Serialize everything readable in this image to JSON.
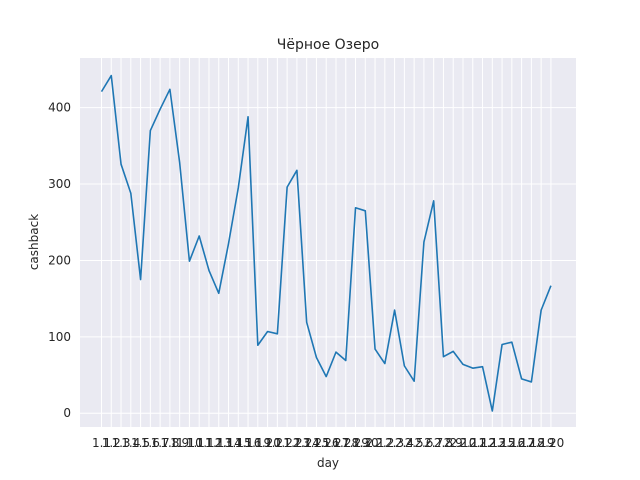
{
  "chart_data": {
    "type": "line",
    "title": "Чёрное Озеро",
    "xlabel": "day",
    "ylabel": "cashback",
    "ylim": [
      -18,
      465
    ],
    "yticks": [
      0,
      100,
      200,
      300,
      400
    ],
    "grid": true,
    "colors": {
      "background": "#eaeaf2",
      "grid": "#ffffff",
      "line": "#1f77b4",
      "text": "#262626"
    },
    "x": [
      "1.1",
      "1.2",
      "1.3",
      "1.4",
      "1.5",
      "1.6",
      "1.7",
      "1.8",
      "1.9",
      "1.10",
      "1.11",
      "1.12",
      "1.13",
      "1.14",
      "1.15",
      "1.16",
      "1.19",
      "1.20",
      "1.21",
      "1.22",
      "1.23",
      "1.24",
      "1.25",
      "1.26",
      "1.27",
      "1.28",
      "1.29",
      "1.30",
      "2.1",
      "2.2",
      "2.3",
      "2.4",
      "2.5",
      "2.6",
      "2.7",
      "2.8",
      "2.9",
      "2.10",
      "2.11",
      "2.12",
      "2.13",
      "2.15",
      "2.16",
      "2.17",
      "2.18",
      "2.19",
      "2.20"
    ],
    "series": [
      {
        "values": [
          421,
          442,
          326,
          288,
          175,
          370,
          398,
          424,
          328,
          199,
          232,
          187,
          157,
          222,
          295,
          388,
          89,
          107,
          104,
          296,
          318,
          119,
          73,
          48,
          80,
          69,
          269,
          265,
          84,
          65,
          135,
          62,
          42,
          224,
          278,
          74,
          81,
          64,
          59,
          61,
          3,
          90,
          93,
          45,
          41,
          135,
          167
        ]
      }
    ]
  }
}
